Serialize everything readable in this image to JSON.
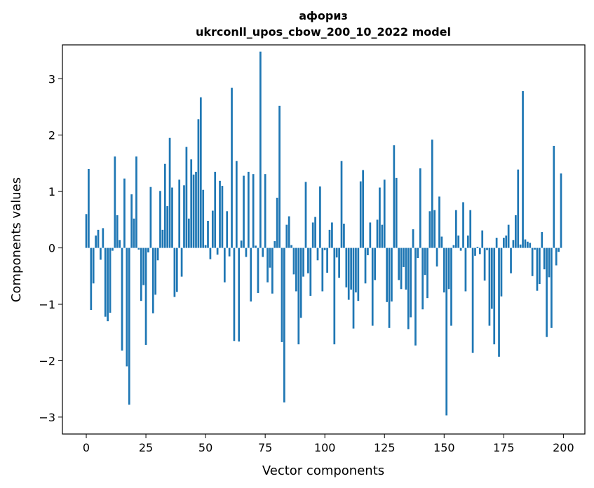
{
  "chart_data": {
    "type": "bar",
    "title_line1": "афориз",
    "title_line2": "ukrconll_upos_cbow_200_10_2022 model",
    "xlabel": "Vector components",
    "ylabel": "Components values",
    "xlim": [
      -10,
      209
    ],
    "ylim": [
      -3.3,
      3.6
    ],
    "xticks": [
      0,
      25,
      50,
      75,
      100,
      125,
      150,
      175,
      200
    ],
    "xtick_labels": [
      "0",
      "25",
      "50",
      "75",
      "100",
      "125",
      "150",
      "175",
      "200"
    ],
    "yticks": [
      -3,
      -2,
      -1,
      0,
      1,
      2,
      3
    ],
    "ytick_labels": [
      "−3",
      "−2",
      "−1",
      "0",
      "1",
      "2",
      "3"
    ],
    "grid": false,
    "bar_color": "#1f77b4",
    "x": [
      0,
      1,
      2,
      3,
      4,
      5,
      6,
      7,
      8,
      9,
      10,
      11,
      12,
      13,
      14,
      15,
      16,
      17,
      18,
      19,
      20,
      21,
      22,
      23,
      24,
      25,
      26,
      27,
      28,
      29,
      30,
      31,
      32,
      33,
      34,
      35,
      36,
      37,
      38,
      39,
      40,
      41,
      42,
      43,
      44,
      45,
      46,
      47,
      48,
      49,
      50,
      51,
      52,
      53,
      54,
      55,
      56,
      57,
      58,
      59,
      60,
      61,
      62,
      63,
      64,
      65,
      66,
      67,
      68,
      69,
      70,
      71,
      72,
      73,
      74,
      75,
      76,
      77,
      78,
      79,
      80,
      81,
      82,
      83,
      84,
      85,
      86,
      87,
      88,
      89,
      90,
      91,
      92,
      93,
      94,
      95,
      96,
      97,
      98,
      99,
      100,
      101,
      102,
      103,
      104,
      105,
      106,
      107,
      108,
      109,
      110,
      111,
      112,
      113,
      114,
      115,
      116,
      117,
      118,
      119,
      120,
      121,
      122,
      123,
      124,
      125,
      126,
      127,
      128,
      129,
      130,
      131,
      132,
      133,
      134,
      135,
      136,
      137,
      138,
      139,
      140,
      141,
      142,
      143,
      144,
      145,
      146,
      147,
      148,
      149,
      150,
      151,
      152,
      153,
      154,
      155,
      156,
      157,
      158,
      159,
      160,
      161,
      162,
      163,
      164,
      165,
      166,
      167,
      168,
      169,
      170,
      171,
      172,
      173,
      174,
      175,
      176,
      177,
      178,
      179,
      180,
      181,
      182,
      183,
      184,
      185,
      186,
      187,
      188,
      189,
      190,
      191,
      192,
      193,
      194,
      195,
      196,
      197,
      198,
      199
    ],
    "values": [
      0.6,
      1.4,
      -1.1,
      -0.63,
      0.22,
      0.32,
      -0.21,
      0.35,
      -1.22,
      -1.3,
      -1.15,
      -0.05,
      1.62,
      0.58,
      0.14,
      -1.82,
      1.23,
      -2.1,
      -2.78,
      0.95,
      0.52,
      1.62,
      -0.03,
      -0.94,
      -0.66,
      -1.72,
      -0.08,
      1.08,
      -1.16,
      -0.83,
      -0.22,
      1.01,
      0.32,
      1.49,
      0.74,
      1.95,
      1.07,
      -0.87,
      -0.78,
      1.21,
      -0.51,
      1.11,
      1.79,
      0.52,
      1.57,
      1.3,
      1.35,
      2.28,
      2.67,
      1.03,
      0.05,
      0.48,
      -0.2,
      0.66,
      1.35,
      -0.12,
      1.19,
      1.1,
      -0.61,
      0.65,
      -0.15,
      2.84,
      -1.65,
      1.54,
      -1.66,
      0.13,
      1.28,
      -0.16,
      1.35,
      -0.95,
      1.31,
      0.04,
      -0.8,
      3.48,
      -0.16,
      1.31,
      -0.61,
      -0.35,
      -0.81,
      0.12,
      0.89,
      2.52,
      -1.67,
      -2.74,
      0.41,
      0.56,
      0.05,
      -0.47,
      -0.77,
      -1.71,
      -1.24,
      -0.51,
      1.17,
      -0.45,
      -0.85,
      0.45,
      0.55,
      -0.22,
      1.09,
      -0.77,
      -0.04,
      -0.44,
      0.32,
      0.45,
      -1.71,
      -0.17,
      -0.53,
      1.54,
      0.43,
      -0.7,
      -0.92,
      -0.74,
      -1.43,
      -0.79,
      -0.94,
      1.18,
      1.38,
      -0.63,
      -0.13,
      0.45,
      -1.38,
      -0.57,
      0.5,
      1.07,
      0.41,
      1.21,
      -0.96,
      -1.42,
      -0.95,
      1.82,
      1.24,
      -0.57,
      -0.73,
      -0.34,
      -0.74,
      -1.44,
      -1.23,
      0.33,
      -1.73,
      -0.18,
      1.41,
      -1.09,
      -0.48,
      -0.89,
      0.65,
      1.92,
      0.67,
      -0.33,
      0.91,
      0.2,
      -0.79,
      -2.97,
      -0.73,
      -1.38,
      0.05,
      0.67,
      0.22,
      -0.05,
      0.81,
      -0.77,
      0.22,
      0.67,
      -1.86,
      -0.14,
      0.02,
      -0.11,
      0.31,
      -0.58,
      -0.04,
      -1.38,
      -1.08,
      -1.71,
      0.18,
      -1.93,
      -0.86,
      0.18,
      0.22,
      0.41,
      -0.45,
      0.14,
      0.58,
      1.39,
      0.06,
      2.78,
      0.15,
      0.11,
      0.09,
      -0.5,
      -0.03,
      -0.76,
      -0.64,
      0.28,
      -0.38,
      -1.58,
      -0.52,
      -1.42,
      1.81,
      -0.31,
      -0.07,
      1.32
    ]
  }
}
